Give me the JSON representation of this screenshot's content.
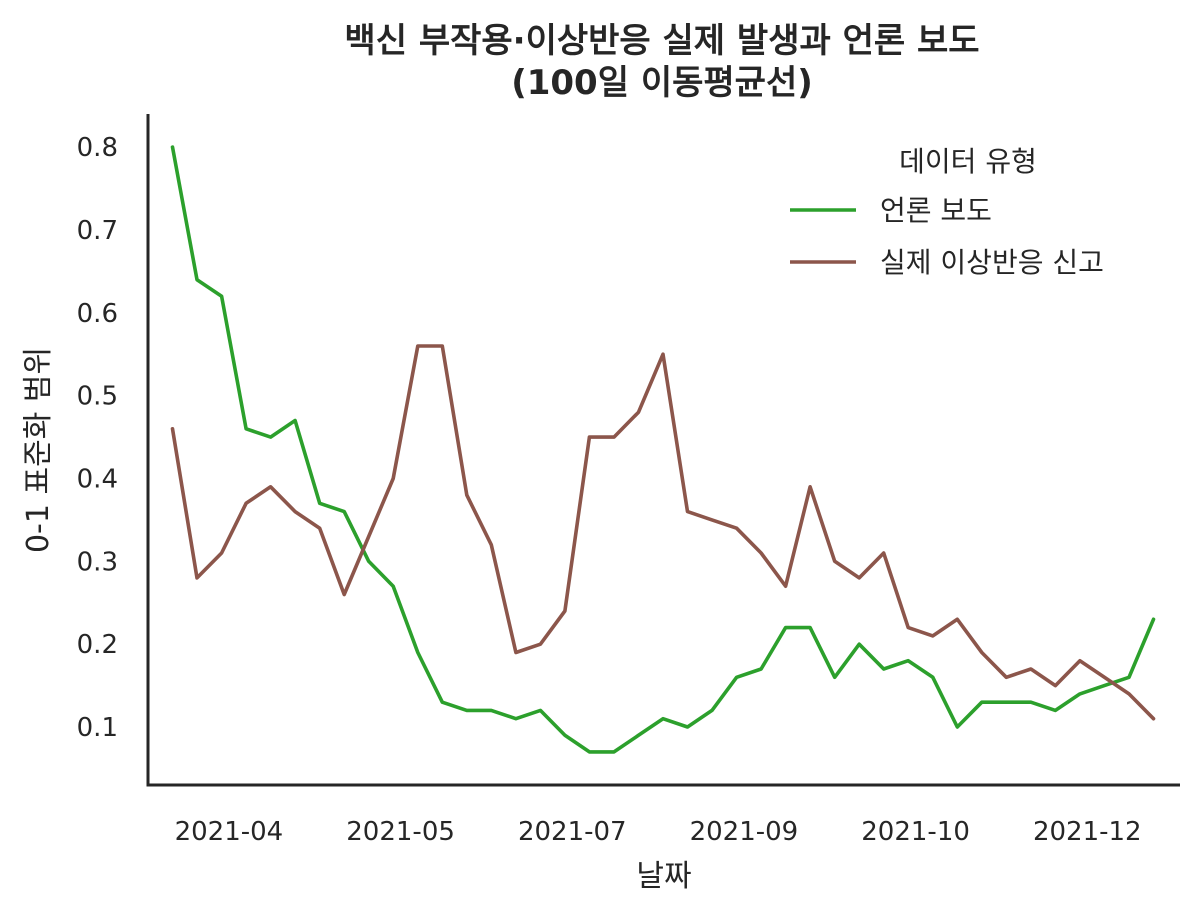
{
  "chart_data": {
    "type": "line",
    "title": [
      "백신 부작용·이상반응 실제 발생과 언론 보도",
      "(100일 이동평균선)"
    ],
    "xlabel": "날짜",
    "ylabel": "0-1 표준화 범위",
    "ylim": [
      0.03,
      0.84
    ],
    "yticks": [
      0.1,
      0.2,
      0.3,
      0.4,
      0.5,
      0.6,
      0.7,
      0.8
    ],
    "ytick_labels": [
      "0.1",
      "0.2",
      "0.3",
      "0.4",
      "0.5",
      "0.6",
      "0.7",
      "0.8"
    ],
    "xlim": [
      -1,
      41
    ],
    "xticks": [
      2.3,
      9.3,
      16.3,
      23.3,
      30.3,
      37.3
    ],
    "xtick_labels": [
      "2021-04",
      "2021-05",
      "2021-07",
      "2021-09",
      "2021-10",
      "2021-12"
    ],
    "grid": false,
    "legend": {
      "title": "데이터 유형",
      "position": "top-right"
    },
    "series": [
      {
        "name": "언론 보도",
        "color": "#2ca02c",
        "values": [
          0.8,
          0.64,
          0.62,
          0.46,
          0.45,
          0.47,
          0.37,
          0.36,
          0.3,
          0.27,
          0.19,
          0.13,
          0.12,
          0.12,
          0.11,
          0.12,
          0.09,
          0.07,
          0.07,
          0.09,
          0.11,
          0.1,
          0.12,
          0.16,
          0.17,
          0.22,
          0.22,
          0.16,
          0.2,
          0.17,
          0.18,
          0.16,
          0.1,
          0.13,
          0.13,
          0.13,
          0.12,
          0.14,
          0.15,
          0.16,
          0.23
        ]
      },
      {
        "name": "실제 이상반응 신고",
        "color": "#8c564b",
        "values": [
          0.46,
          0.28,
          0.31,
          0.37,
          0.39,
          0.36,
          0.34,
          0.26,
          0.33,
          0.4,
          0.56,
          0.56,
          0.38,
          0.32,
          0.19,
          0.2,
          0.24,
          0.45,
          0.45,
          0.48,
          0.55,
          0.36,
          0.35,
          0.34,
          0.31,
          0.27,
          0.39,
          0.3,
          0.28,
          0.31,
          0.22,
          0.21,
          0.23,
          0.19,
          0.16,
          0.17,
          0.15,
          0.18,
          0.16,
          0.14,
          0.11
        ]
      }
    ]
  }
}
